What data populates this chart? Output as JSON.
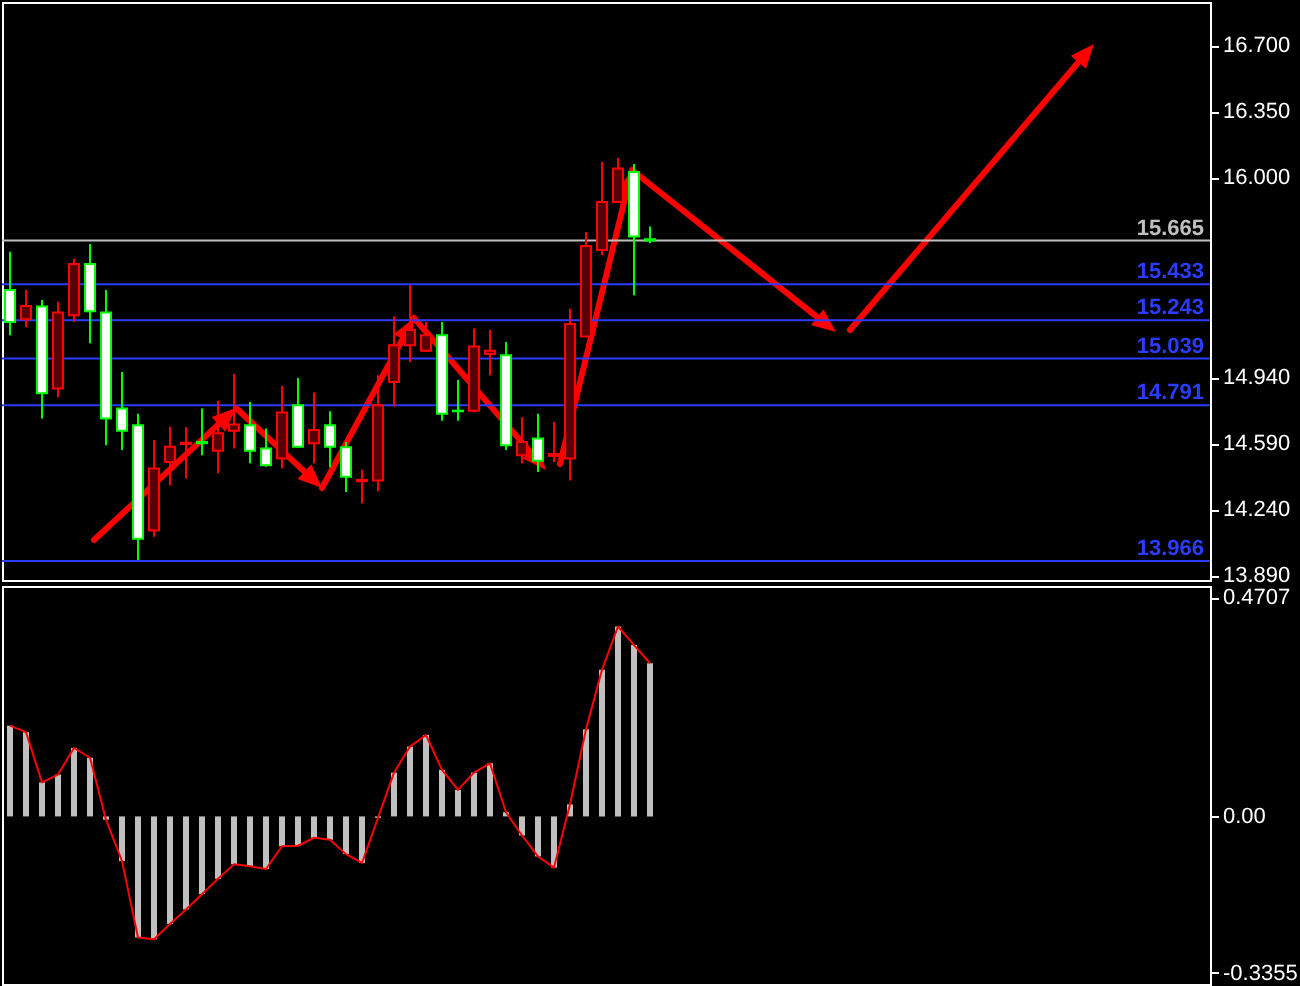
{
  "chart_data": [
    {
      "type": "candlestick",
      "categories": [
        null,
        null,
        null,
        null,
        null,
        null,
        null,
        null,
        null,
        null,
        null,
        null,
        null,
        null,
        null,
        null,
        null,
        null,
        null,
        null,
        null,
        null,
        null,
        null,
        null,
        null,
        null,
        null,
        null,
        null,
        null,
        null,
        null,
        null,
        null,
        null,
        null,
        null,
        null,
        null,
        null,
        null,
        null,
        null,
        null,
        null,
        null,
        null,
        null,
        null,
        null,
        null,
        null,
        null,
        null,
        null,
        null,
        null,
        null,
        null,
        null,
        null,
        null,
        null,
        null,
        null,
        null,
        null,
        null,
        null,
        null,
        null,
        null,
        null,
        null
      ],
      "ohlc": [
        [
          15.403,
          15.605,
          15.163,
          15.233
        ],
        [
          15.248,
          15.403,
          15.205,
          15.318
        ],
        [
          15.315,
          15.35,
          14.721,
          14.855
        ],
        [
          14.88,
          15.34,
          14.834,
          15.283
        ],
        [
          15.269,
          15.569,
          15.233,
          15.541
        ],
        [
          15.541,
          15.647,
          15.12,
          15.29
        ],
        [
          15.283,
          15.403,
          14.579,
          14.721
        ],
        [
          14.774,
          14.968,
          14.555,
          14.657
        ],
        [
          14.685,
          14.746,
          13.971,
          14.084
        ],
        [
          14.127,
          14.608,
          14.095,
          14.456
        ],
        [
          14.491,
          14.678,
          14.367,
          14.572
        ],
        [
          14.586,
          14.675,
          14.403,
          14.593
        ],
        [
          14.597,
          14.774,
          14.526,
          14.59
        ],
        [
          14.551,
          14.816,
          14.431,
          14.643
        ],
        [
          14.657,
          14.958,
          14.562,
          14.689
        ],
        [
          14.685,
          14.809,
          14.484,
          14.551
        ],
        [
          14.562,
          14.668,
          14.466,
          14.473
        ],
        [
          14.509,
          14.894,
          14.456,
          14.753
        ],
        [
          14.792,
          14.936,
          14.569,
          14.572
        ],
        [
          14.59,
          14.859,
          14.484,
          14.661
        ],
        [
          14.685,
          14.76,
          14.463,
          14.572
        ],
        [
          14.569,
          14.597,
          14.332,
          14.413
        ],
        [
          14.389,
          14.449,
          14.272,
          14.396
        ],
        [
          14.392,
          14.951,
          14.335,
          14.792
        ],
        [
          14.915,
          15.262,
          14.785,
          15.11
        ],
        [
          15.11,
          15.428,
          15.021,
          15.191
        ],
        [
          15.081,
          15.233,
          15.074,
          15.163
        ],
        [
          15.163,
          15.233,
          14.71,
          14.746
        ],
        [
          14.763,
          14.926,
          14.71,
          14.76
        ],
        [
          14.763,
          15.198,
          14.756,
          15.103
        ],
        [
          15.064,
          15.191,
          14.951,
          15.081
        ],
        [
          15.057,
          15.127,
          14.555,
          14.579
        ],
        [
          14.526,
          14.728,
          14.484,
          14.597
        ],
        [
          14.615,
          14.746,
          14.438,
          14.498
        ],
        [
          14.523,
          14.703,
          14.491,
          14.533
        ],
        [
          14.509,
          15.304,
          14.392,
          15.223
        ],
        [
          15.156,
          15.711,
          15.156,
          15.636
        ],
        [
          15.615,
          16.082,
          15.587,
          15.87
        ],
        [
          15.87,
          16.103,
          15.87,
          16.047
        ],
        [
          16.029,
          16.071,
          15.375,
          15.686
        ],
        [
          15.672,
          15.739,
          15.651,
          15.665
        ],
        null,
        null,
        null,
        null,
        null,
        null,
        null,
        null,
        null,
        null,
        null,
        null,
        null,
        null,
        null,
        null,
        null,
        null,
        null,
        null,
        null,
        null,
        null,
        null,
        null,
        null,
        null,
        null,
        null,
        null,
        null,
        null,
        null,
        null
      ],
      "colors": [
        "#00ff00",
        "#ff0000",
        "#00ff00",
        "#ff0000",
        "#ff0000",
        "#00ff00",
        "#00ff00",
        "#00ff00",
        "#00ff00",
        "#ff0000",
        "#ff0000",
        "#ff0000",
        "#00ff00",
        "#ff0000",
        "#ff0000",
        "#00ff00",
        "#00ff00",
        "#ff0000",
        "#00ff00",
        "#ff0000",
        "#00ff00",
        "#00ff00",
        "#ff0000",
        "#ff0000",
        "#ff0000",
        "#ff0000",
        "#ff0000",
        "#00ff00",
        "#00ff00",
        "#ff0000",
        "#ff0000",
        "#00ff00",
        "#ff0000",
        "#00ff00",
        "#ff0000",
        "#ff0000",
        "#ff0000",
        "#ff0000",
        "#ff0000",
        "#00ff00",
        "#00ff00",
        null,
        null,
        null,
        null,
        null,
        null,
        null,
        null,
        null,
        null,
        null,
        null,
        null,
        null,
        null,
        null,
        null,
        null,
        null,
        null,
        null,
        null,
        null,
        null,
        null,
        null,
        null,
        null,
        null,
        null,
        null,
        null,
        null,
        null
      ],
      "ylim": [
        13.865,
        16.93
      ],
      "yticks": [
        {
          "value": 13.89,
          "label": "13.890"
        },
        {
          "value": 14.24,
          "label": "14.240"
        },
        {
          "value": 14.59,
          "label": "14.590"
        },
        {
          "value": 14.94,
          "label": "14.940"
        },
        {
          "value": 16.0,
          "label": "16.000"
        },
        {
          "value": 16.35,
          "label": "16.350"
        },
        {
          "value": 16.7,
          "label": "16.700"
        }
      ],
      "ref_lines": [
        {
          "axis": "y",
          "value": 15.665,
          "label": "15.665",
          "color": "#c0c0c0"
        },
        {
          "axis": "y",
          "value": 15.433,
          "label": "15.433",
          "color": "#2b3cff"
        },
        {
          "axis": "y",
          "value": 15.243,
          "label": "15.243",
          "color": "#2b3cff"
        },
        {
          "axis": "y",
          "value": 15.039,
          "label": "15.039",
          "color": "#2b3cff"
        },
        {
          "axis": "y",
          "value": 14.791,
          "label": "14.791",
          "color": "#2b3cff"
        },
        {
          "axis": "y",
          "value": 13.966,
          "label": "13.966",
          "color": "#2b3cff"
        }
      ]
    },
    {
      "type": "bar",
      "categories": [
        null,
        null,
        null,
        null,
        null,
        null,
        null,
        null,
        null,
        null,
        null,
        null,
        null,
        null,
        null,
        null,
        null,
        null,
        null,
        null,
        null,
        null,
        null,
        null,
        null,
        null,
        null,
        null,
        null,
        null,
        null,
        null,
        null,
        null,
        null,
        null,
        null,
        null,
        null,
        null,
        null,
        null,
        null,
        null,
        null,
        null,
        null,
        null,
        null,
        null,
        null,
        null,
        null,
        null,
        null,
        null,
        null,
        null,
        null,
        null,
        null,
        null,
        null,
        null,
        null,
        null,
        null,
        null,
        null,
        null,
        null,
        null,
        null,
        null,
        null
      ],
      "series": [
        {
          "type": "bar",
          "color": "#c0c0c0",
          "values": [
            0.195,
            0.181,
            0.073,
            0.09,
            0.147,
            0.126,
            -0.007,
            -0.096,
            -0.26,
            -0.264,
            -0.231,
            -0.2,
            -0.167,
            -0.134,
            -0.103,
            -0.107,
            -0.113,
            -0.064,
            -0.063,
            -0.046,
            -0.05,
            -0.081,
            -0.1,
            -0.003,
            0.094,
            0.15,
            0.175,
            0.1,
            0.057,
            0.094,
            0.114,
            0.009,
            -0.041,
            -0.086,
            -0.11,
            0.026,
            0.187,
            0.315,
            0.408,
            0.368,
            0.329,
            null,
            null,
            null,
            null,
            null,
            null,
            null,
            null,
            null,
            null,
            null,
            null,
            null,
            null,
            null,
            null,
            null,
            null,
            null,
            null,
            null,
            null,
            null,
            null,
            null,
            null,
            null,
            null,
            null,
            null,
            null,
            null,
            null,
            null
          ]
        },
        {
          "type": "line",
          "color": "#ff0000",
          "values": [
            0.195,
            0.181,
            0.073,
            0.09,
            0.147,
            0.126,
            -0.007,
            -0.096,
            -0.26,
            -0.264,
            -0.231,
            -0.2,
            -0.167,
            -0.134,
            -0.103,
            -0.107,
            -0.113,
            -0.064,
            -0.063,
            -0.046,
            -0.05,
            -0.081,
            -0.1,
            -0.003,
            0.094,
            0.15,
            0.175,
            0.1,
            0.057,
            0.094,
            0.114,
            0.009,
            -0.041,
            -0.086,
            -0.11,
            0.026,
            0.187,
            0.315,
            0.408,
            0.368,
            0.329,
            null,
            null,
            null,
            null,
            null,
            null,
            null,
            null,
            null,
            null,
            null,
            null,
            null,
            null,
            null,
            null,
            null,
            null,
            null,
            null,
            null,
            null,
            null,
            null,
            null,
            null,
            null,
            null,
            null,
            null,
            null,
            null,
            null,
            null
          ]
        }
      ],
      "ylim": [
        -0.36,
        0.495
      ],
      "yticks": [
        0.4707,
        {
          "value": 0,
          "label": "0.00"
        },
        -0.3355
      ]
    }
  ]
}
